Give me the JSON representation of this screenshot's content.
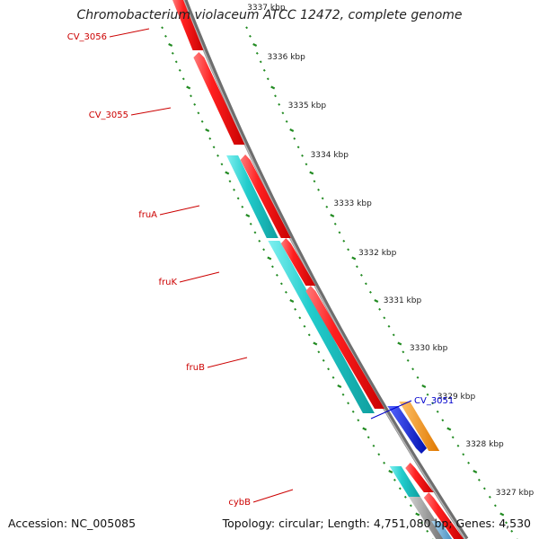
{
  "title": "Chromobacterium violaceum ATCC 12472, complete genome",
  "footer": {
    "accession": "Accession: NC_005085",
    "summary": "Topology: circular; Length: 4,751,080 bp; Genes: 4,530"
  },
  "colors": {
    "forward_gene": "#ee1111",
    "reverse_gene": "#ee1111",
    "fru_gene": "#22cccc",
    "blue_gene": "#1122dd",
    "orange_gene": "#ff9911",
    "backbone": "#888888",
    "tick": "#228b22",
    "label_red": "#cc0000",
    "label_blue": "#0000cc"
  },
  "kbp_ticks": [
    "3337 kbp",
    "3336 kbp",
    "3335 kbp",
    "3334 kbp",
    "3333 kbp",
    "3332 kbp",
    "3331 kbp",
    "3330 kbp",
    "3329 kbp",
    "3328 kbp",
    "3327 kbp"
  ],
  "gene_labels": [
    {
      "name": "CV_3056",
      "color": "red"
    },
    {
      "name": "CV_3055",
      "color": "red"
    },
    {
      "name": "fruA",
      "color": "red"
    },
    {
      "name": "fruK",
      "color": "red"
    },
    {
      "name": "fruB",
      "color": "red"
    },
    {
      "name": "cybB",
      "color": "red"
    },
    {
      "name": "CV_3051",
      "color": "blue"
    }
  ]
}
